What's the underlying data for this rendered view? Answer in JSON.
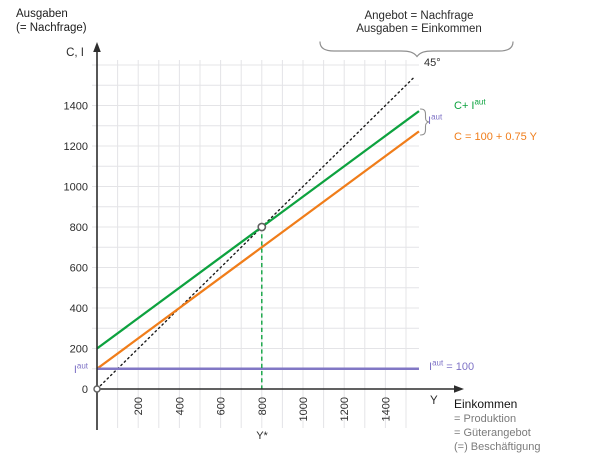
{
  "colors": {
    "green": "#0da23f",
    "orange": "#f07d1a",
    "purple": "#7e72c6",
    "axis": "#2d2d2d",
    "grid": "#e4e4e7",
    "text": "#2d2d2d",
    "gray_text": "#7b7b7b",
    "brace": "#8f8f8f",
    "marker_stroke": "#5f5f5f"
  },
  "title": {
    "line1": "Ausgaben",
    "line2": "(= Nachfrage)"
  },
  "annotation_top": {
    "line1": "Angebot = Nachfrage",
    "line2": "Ausgaben = Einkommen"
  },
  "labels": {
    "y_axis_var": "C, I",
    "angle": "45°",
    "green_line": {
      "pre": "C+ I",
      "sup": "aut"
    },
    "orange_line": "C = 100 + 0.75 Y",
    "iaut_brace": {
      "base": "I",
      "sup": "aut"
    },
    "iaut_left": {
      "base": "I",
      "sup": "aut"
    },
    "iaut_line": {
      "base": "I",
      "sup": "aut",
      "rest": " = 100"
    },
    "x_axis_var": "Y",
    "x_star": "Y*",
    "x_axis_block": {
      "title": "Einkommen",
      "line1": "= Produktion",
      "line2": "= Güterangebot",
      "line3": "(=) Beschäftigung"
    }
  },
  "chart_data": {
    "type": "line",
    "xlabel": "Y (Einkommen)",
    "ylabel": "C, I (Ausgaben)",
    "xlim": [
      0,
      1560
    ],
    "ylim": [
      0,
      1640
    ],
    "grid": true,
    "x_ticks": [
      200,
      400,
      600,
      800,
      1000,
      1200,
      1400
    ],
    "y_ticks": [
      0,
      200,
      400,
      600,
      800,
      1000,
      1200,
      1400
    ],
    "series": [
      {
        "id": "line-45deg",
        "name": "45°",
        "slope": 1,
        "intercept": 0,
        "x_end": 1540,
        "style": "dotted",
        "color": "#1c1c1c",
        "width": 1.4
      },
      {
        "id": "c-plus-iaut",
        "name": "C+ Iaut",
        "slope": 0.75,
        "intercept": 200,
        "x_end": 1563,
        "style": "solid",
        "color": "#0da23f",
        "width": 2.3
      },
      {
        "id": "consumption-function",
        "name": "C = 100 + 0.75 Y",
        "slope": 0.75,
        "intercept": 100,
        "x_end": 1563,
        "style": "solid",
        "color": "#f07d1a",
        "width": 2.3
      },
      {
        "id": "autonomous-investment",
        "name": "Iaut = 100",
        "slope": 0,
        "intercept": 100,
        "x_end": 1563,
        "style": "solid",
        "color": "#8177c5",
        "width": 2.4
      }
    ],
    "equilibrium": {
      "x": 800,
      "y": 800,
      "label": "Y*"
    }
  }
}
